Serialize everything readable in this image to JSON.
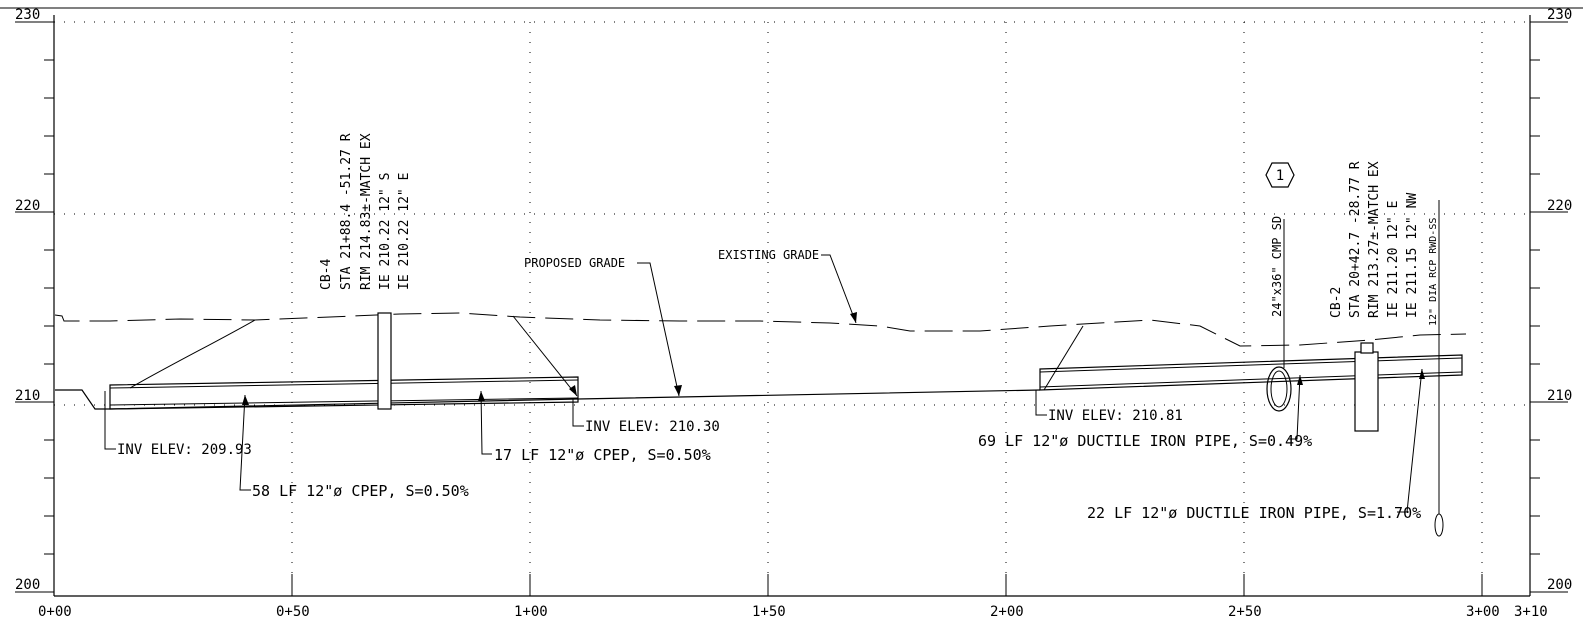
{
  "profile": {
    "elevations_left": [
      "230",
      "220",
      "210",
      "200"
    ],
    "elevations_right": [
      "230",
      "220",
      "210",
      "200"
    ],
    "stations": [
      "0+00",
      "0+50",
      "1+00",
      "1+50",
      "2+00",
      "2+50",
      "3+00",
      "3+10"
    ]
  },
  "structures": {
    "cb4": [
      "CB-4",
      "STA 21+88.4 -51.27 R",
      "RIM 214.83±-MATCH EX",
      "IE 210.22 12\" S",
      "IE 210.22 12\" E"
    ],
    "cb2": [
      "CB-2",
      "STA 20+42.7 -28.77 R",
      "RIM 213.27±-MATCH EX",
      "IE 211.20 12\" E",
      "IE 211.15 12\" NW"
    ],
    "culvert": "24\"x36\" CMP SD",
    "rwd": "12\" DIA RCP RWD-SS",
    "keynote": "1"
  },
  "callouts": {
    "proposed_grade": "PROPOSED GRADE",
    "existing_grade": "EXISTING GRADE",
    "inv_209_93": "INV ELEV: 209.93",
    "inv_210_30": "INV ELEV: 210.30",
    "inv_210_81": "INV ELEV: 210.81",
    "pipe_58": "58 LF 12\"ø CPEP, S=0.50%",
    "pipe_17": "17 LF 12\"ø CPEP, S=0.50%",
    "pipe_69": "69 LF 12\"ø DUCTILE IRON PIPE, S=0.49%",
    "pipe_22": "22 LF 12\"ø DUCTILE IRON PIPE, S=1.70%"
  }
}
